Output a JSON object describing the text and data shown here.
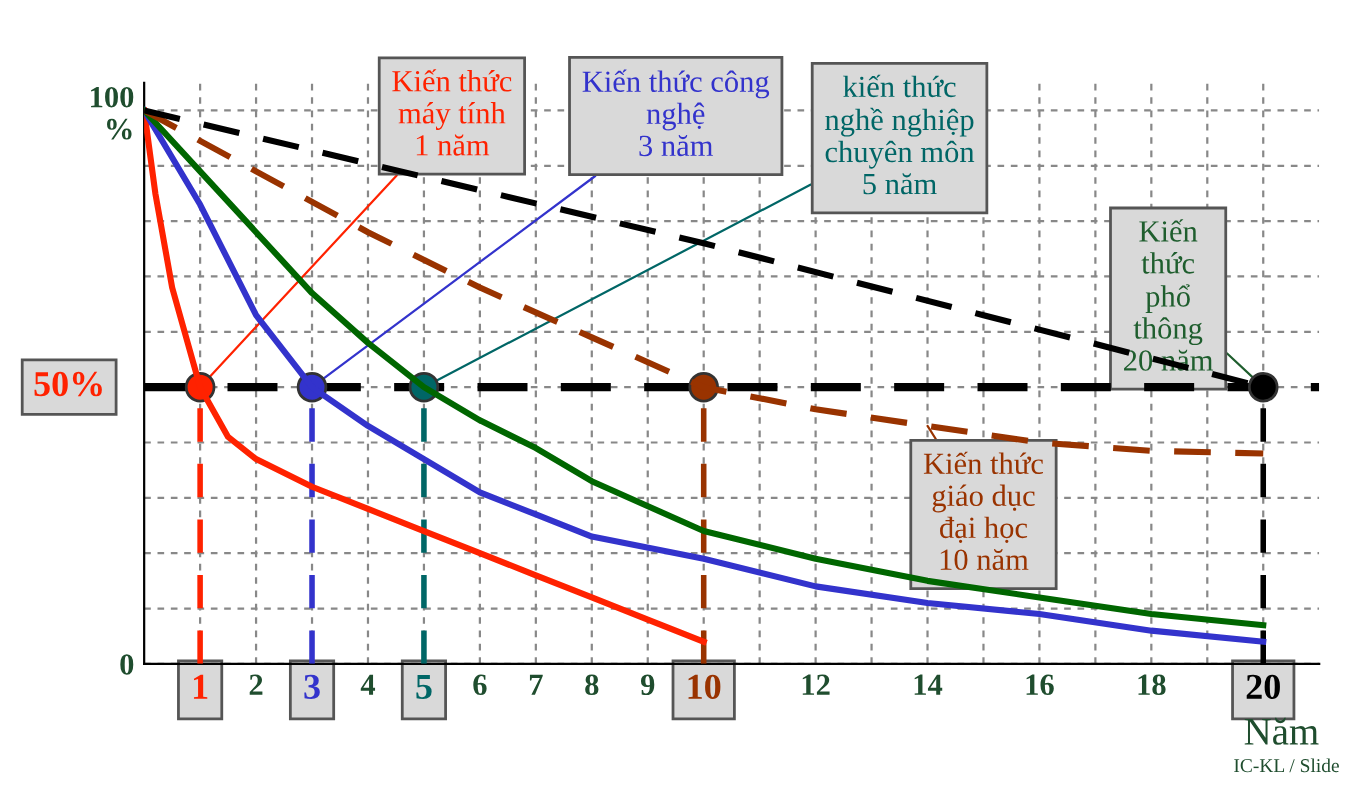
{
  "chart_data": {
    "type": "line",
    "xlabel": "Năm",
    "series": [
      {
        "color": "#ff2200",
        "x": [
          0,
          0.2,
          0.5,
          1,
          1.5,
          2,
          3,
          4,
          5,
          6,
          7,
          8,
          9,
          10
        ],
        "values": [
          100,
          85,
          68,
          50,
          41,
          37,
          32,
          28,
          24,
          20,
          16,
          12,
          8,
          4
        ]
      },
      {
        "color": "#3333cc",
        "x": [
          0,
          1,
          2,
          3,
          4,
          5,
          6,
          7,
          8,
          10,
          12,
          14,
          16,
          18,
          20
        ],
        "values": [
          100,
          83,
          63,
          50,
          43,
          37,
          31,
          27,
          23,
          19,
          14,
          11,
          9,
          6,
          4
        ]
      },
      {
        "color": "#006600",
        "x": [
          0,
          1,
          2,
          3,
          4,
          5,
          6,
          7,
          8,
          10,
          12,
          14,
          16,
          18,
          20
        ],
        "values": [
          100,
          89,
          78,
          67,
          58,
          50,
          44,
          39,
          33,
          24,
          19,
          15,
          12,
          9,
          7
        ]
      },
      {
        "color": "#993300",
        "line_style": "dashed",
        "x": [
          0,
          2,
          4,
          6,
          8,
          10,
          12,
          14,
          16,
          18,
          20
        ],
        "values": [
          100,
          89,
          78,
          68,
          59,
          50,
          46,
          43,
          40,
          38.5,
          38
        ]
      },
      {
        "color": "#000000",
        "line_style": "dashed",
        "x": [
          0,
          5,
          10,
          15,
          20
        ],
        "values": [
          100,
          88,
          76,
          63,
          50
        ]
      }
    ],
    "xlim": [
      0,
      21
    ],
    "ylim": [
      0,
      105
    ],
    "xticks": [
      1,
      2,
      3,
      4,
      5,
      6,
      7,
      8,
      9,
      10,
      {
        "value": 11,
        "label": null
      },
      12,
      {
        "value": 13,
        "label": null
      },
      14,
      {
        "value": 15,
        "label": null
      },
      16,
      {
        "value": 17,
        "label": null
      },
      18,
      {
        "value": 19,
        "label": null
      },
      20
    ],
    "yticks": [
      0,
      {
        "value": 10,
        "label": null
      },
      {
        "value": 20,
        "label": null
      },
      {
        "value": 30,
        "label": null
      },
      {
        "value": 40,
        "label": null
      },
      {
        "value": 50,
        "label": null
      },
      {
        "value": 60,
        "label": null
      },
      {
        "value": 70,
        "label": null
      },
      {
        "value": 80,
        "label": null
      },
      {
        "value": 90,
        "label": null
      },
      {
        "value": 100,
        "label": "100\n%"
      }
    ],
    "grid": true,
    "ref_lines": [
      {
        "axis": "y",
        "value": 50,
        "label": "50%",
        "color": "#000000",
        "line_style": "dashed"
      },
      {
        "axis": "x",
        "value": 1,
        "color": "#ff2200",
        "line_style": "dashed"
      },
      {
        "axis": "x",
        "value": 3,
        "color": "#3333cc",
        "line_style": "dashed"
      },
      {
        "axis": "x",
        "value": 5,
        "color": "#006666",
        "line_style": "dashed"
      },
      {
        "axis": "x",
        "value": 10,
        "color": "#993300",
        "line_style": "dashed"
      },
      {
        "axis": "x",
        "value": 20,
        "color": "#000000",
        "line_style": "dashed"
      }
    ],
    "annotations": [
      {
        "text": "Kiến thức\nmáy tính\n1 năm",
        "x": 1,
        "y": 50
      },
      {
        "text": "Kiến thức công\nnghệ\n3 năm",
        "x": 3,
        "y": 50
      },
      {
        "text": "kiến thức\nnghề nghiệp\nchuyên môn\n5 năm",
        "x": 5,
        "y": 50
      },
      {
        "text": "Kiến\nthức\nphổ\nthông\n20 năm",
        "x": 20,
        "y": 50
      },
      {
        "text": "Kiến thức\ngiáo dục\nđại học\n10 năm",
        "x": 14,
        "y": 43
      },
      "IC-KL / Slide"
    ]
  }
}
